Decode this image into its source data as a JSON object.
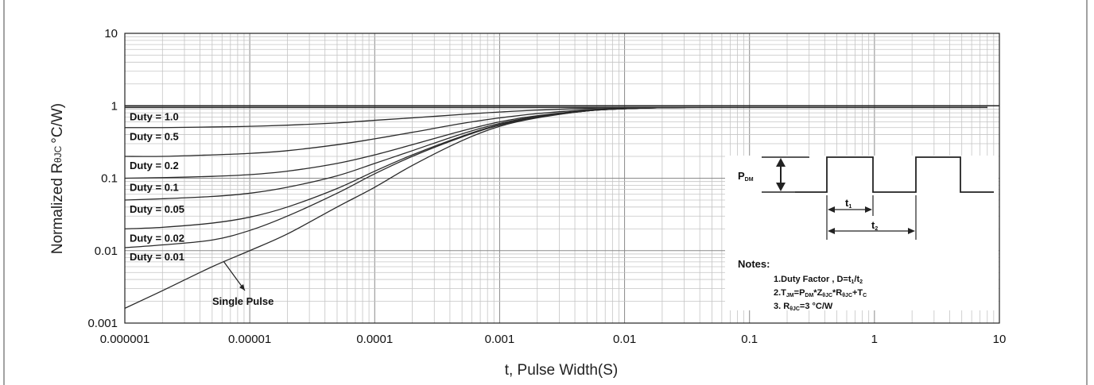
{
  "chart_data": {
    "type": "line",
    "title": "",
    "xlabel": "t, Pulse Width(S)",
    "ylabel_main": "Normalized R",
    "ylabel_sub": "θJC",
    "ylabel_unit": "°C/W)",
    "xscale": "log",
    "yscale": "log",
    "xlim": [
      1e-06,
      10
    ],
    "ylim": [
      0.001,
      10
    ],
    "grid": true,
    "x_ticks": [
      "0.000001",
      "0.00001",
      "0.0001",
      "0.001",
      "0.01",
      "0.1",
      "1",
      "10"
    ],
    "y_ticks": [
      "0.001",
      "0.01",
      "0.1",
      "1",
      "10"
    ],
    "reference_line": {
      "y": 1
    },
    "x": [
      1e-06,
      2e-06,
      5e-06,
      1e-05,
      2e-05,
      5e-05,
      0.0001,
      0.0002,
      0.0005,
      0.001,
      0.002,
      0.005,
      0.01,
      0.02,
      0.05,
      0.1,
      0.2,
      0.5,
      1,
      2,
      5,
      8
    ],
    "series": [
      {
        "name": "Duty = 1.0",
        "values": [
          0.95,
          0.95,
          0.95,
          0.95,
          0.95,
          0.95,
          0.95,
          0.95,
          0.95,
          0.95,
          0.95,
          0.95,
          0.95,
          0.95,
          0.95,
          0.95,
          0.95,
          0.95,
          0.95,
          0.95,
          0.95,
          0.95
        ]
      },
      {
        "name": "Duty = 0.5",
        "values": [
          0.5,
          0.5,
          0.51,
          0.52,
          0.54,
          0.58,
          0.63,
          0.68,
          0.76,
          0.82,
          0.87,
          0.92,
          0.94,
          0.95,
          0.95,
          0.95,
          0.95,
          0.95,
          0.95,
          0.95,
          0.95,
          0.95
        ]
      },
      {
        "name": "Duty = 0.2",
        "values": [
          0.2,
          0.2,
          0.21,
          0.22,
          0.24,
          0.29,
          0.35,
          0.43,
          0.57,
          0.68,
          0.78,
          0.88,
          0.92,
          0.94,
          0.95,
          0.95,
          0.95,
          0.95,
          0.95,
          0.95,
          0.95,
          0.95
        ]
      },
      {
        "name": "Duty = 0.1",
        "values": [
          0.1,
          0.102,
          0.106,
          0.112,
          0.125,
          0.16,
          0.21,
          0.29,
          0.45,
          0.6,
          0.73,
          0.86,
          0.91,
          0.94,
          0.95,
          0.95,
          0.95,
          0.95,
          0.95,
          0.95,
          0.95,
          0.95
        ]
      },
      {
        "name": "Duty = 0.05",
        "values": [
          0.05,
          0.052,
          0.056,
          0.062,
          0.075,
          0.108,
          0.16,
          0.24,
          0.41,
          0.57,
          0.71,
          0.85,
          0.91,
          0.94,
          0.95,
          0.95,
          0.95,
          0.95,
          0.95,
          0.95,
          0.95,
          0.95
        ]
      },
      {
        "name": "Duty = 0.02",
        "values": [
          0.02,
          0.021,
          0.024,
          0.029,
          0.04,
          0.072,
          0.125,
          0.21,
          0.38,
          0.55,
          0.7,
          0.85,
          0.91,
          0.94,
          0.95,
          0.95,
          0.95,
          0.95,
          0.95,
          0.95,
          0.95,
          0.95
        ]
      },
      {
        "name": "Duty = 0.01",
        "values": [
          0.011,
          0.012,
          0.014,
          0.019,
          0.03,
          0.062,
          0.115,
          0.2,
          0.37,
          0.54,
          0.69,
          0.85,
          0.91,
          0.94,
          0.95,
          0.95,
          0.95,
          0.95,
          0.95,
          0.95,
          0.95,
          0.95
        ]
      },
      {
        "name": "Single Pulse",
        "values": [
          0.0016,
          0.0028,
          0.006,
          0.01,
          0.017,
          0.04,
          0.075,
          0.15,
          0.33,
          0.52,
          0.68,
          0.85,
          0.91,
          0.94,
          0.95,
          0.95,
          0.95,
          0.95,
          0.95,
          0.95,
          0.95,
          0.95
        ]
      }
    ],
    "annotations": {
      "single_pulse": "Single Pulse",
      "pdm_main": "P",
      "pdm_sub": "DM",
      "t1_main": "t",
      "t1_sub": "1",
      "t2_main": "t",
      "t2_sub": "2",
      "notes_title": "Notes:",
      "note1_main": "1.Duty Factor , D=t",
      "note1_sub_a": "1",
      "note1_mid": "/t",
      "note1_sub_b": "2",
      "note2_a": "2.T",
      "note2_sub_a": "JM",
      "note2_b": "=P",
      "note2_sub_b": "DM",
      "note2_c": "*Z",
      "note2_sub_c": "θJC",
      "note2_d": "*R",
      "note2_sub_d": "θJC",
      "note2_e": "+T",
      "note2_sub_e": "C",
      "note3_a": "3. R",
      "note3_sub": "θJC",
      "note3_b": "=3 °C/W"
    }
  }
}
